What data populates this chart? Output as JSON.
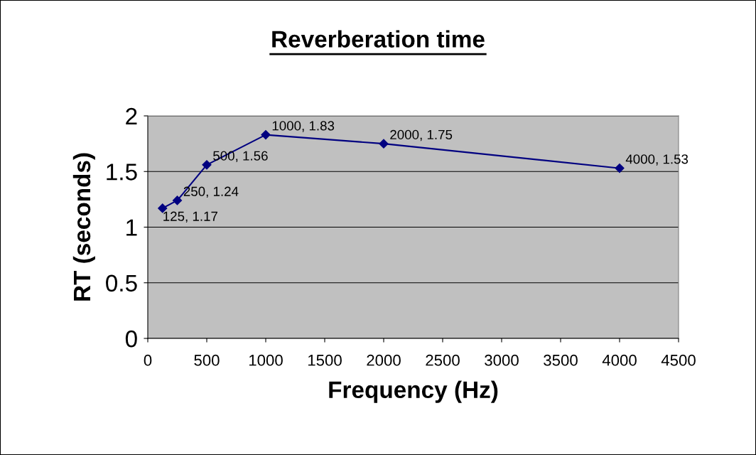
{
  "chart_data": {
    "type": "line",
    "title": "Reverberation time",
    "xlabel": "Frequency (Hz)",
    "ylabel": "RT (seconds)",
    "x": [
      125,
      250,
      500,
      1000,
      2000,
      4000
    ],
    "series": [
      {
        "color": "#000080",
        "values": [
          1.17,
          1.24,
          1.56,
          1.83,
          1.75,
          1.53
        ],
        "value_labels": [
          "125, 1.17",
          "250, 1.24",
          "500, 1.56",
          "1000, 1.83",
          "2000, 1.75",
          "4000, 1.53"
        ]
      }
    ],
    "xlim": [
      0,
      4500
    ],
    "xticks": [
      0,
      500,
      1000,
      1500,
      2000,
      2500,
      3000,
      3500,
      4000,
      4500
    ],
    "ylim": [
      0,
      2
    ],
    "yticks": [
      0,
      0.5,
      1,
      1.5,
      2
    ],
    "grid": "y",
    "marker": "diamond",
    "line_style": "solid",
    "legend": false
  }
}
